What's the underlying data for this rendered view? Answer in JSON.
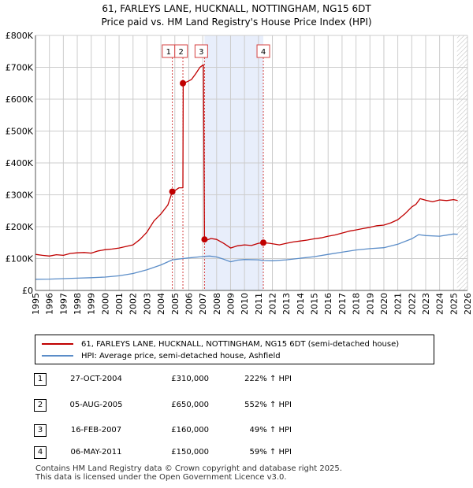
{
  "title_line1": "61, FARLEYS LANE, HUCKNALL, NOTTINGHAM, NG15 6DT",
  "title_line2": "Price paid vs. HM Land Registry's House Price Index (HPI)",
  "colors": {
    "property": "#c00000",
    "hpi": "#5b8dc8",
    "highlight": "#e8eefb",
    "marker_line": "#d44040",
    "grid": "#cccccc"
  },
  "chart_data": {
    "type": "line",
    "ylim": [
      0,
      800000
    ],
    "xlim": [
      1995,
      2026
    ],
    "yticks": [
      0,
      100000,
      200000,
      300000,
      400000,
      500000,
      600000,
      700000,
      800000
    ],
    "ytick_labels": [
      "£0",
      "£100K",
      "£200K",
      "£300K",
      "£400K",
      "£500K",
      "£600K",
      "£700K",
      "£800K"
    ],
    "xticks": [
      1995,
      1996,
      1997,
      1998,
      1999,
      2000,
      2001,
      2002,
      2003,
      2004,
      2005,
      2006,
      2007,
      2008,
      2009,
      2010,
      2011,
      2012,
      2013,
      2014,
      2015,
      2016,
      2017,
      2018,
      2019,
      2020,
      2021,
      2022,
      2023,
      2024,
      2025,
      2026
    ],
    "highlight_range": [
      2007.13,
      2011.35
    ],
    "future_hatch_from": 2025.25,
    "series": [
      {
        "name": "61, FARLEYS LANE, HUCKNALL, NOTTINGHAM, NG15 6DT (semi-detached house)",
        "x": [
          1995.0,
          1995.5,
          1996.0,
          1996.5,
          1997.0,
          1997.5,
          1998.0,
          1998.5,
          1999.0,
          1999.5,
          2000.0,
          2000.5,
          2001.0,
          2001.5,
          2002.0,
          2002.5,
          2003.0,
          2003.5,
          2004.0,
          2004.5,
          2004.82,
          2005.0,
          2005.3,
          2005.58,
          2005.6,
          2005.9,
          2006.2,
          2006.5,
          2006.8,
          2007.05,
          2007.13,
          2007.3,
          2007.6,
          2008.0,
          2008.5,
          2009.0,
          2009.5,
          2010.0,
          2010.5,
          2011.0,
          2011.35,
          2011.8,
          2012.5,
          2013.0,
          2013.5,
          2014.0,
          2014.5,
          2015.0,
          2015.5,
          2016.0,
          2016.5,
          2017.0,
          2017.5,
          2018.0,
          2018.5,
          2019.0,
          2019.5,
          2020.0,
          2020.5,
          2021.0,
          2021.5,
          2022.0,
          2022.3,
          2022.6,
          2023.0,
          2023.5,
          2024.0,
          2024.5,
          2025.0,
          2025.3
        ],
        "values": [
          113000,
          110000,
          108000,
          112000,
          110000,
          116000,
          118000,
          119000,
          117000,
          124000,
          128000,
          130000,
          133000,
          138000,
          143000,
          160000,
          183000,
          218000,
          240000,
          268000,
          310000,
          313000,
          322000,
          322000,
          650000,
          655000,
          662000,
          680000,
          700000,
          708000,
          160000,
          158000,
          163000,
          160000,
          148000,
          133000,
          140000,
          143000,
          141000,
          148000,
          150000,
          148000,
          143000,
          148000,
          152000,
          155000,
          158000,
          162000,
          165000,
          170000,
          174000,
          180000,
          186000,
          190000,
          194000,
          198000,
          203000,
          205000,
          212000,
          222000,
          240000,
          262000,
          270000,
          288000,
          283000,
          278000,
          284000,
          282000,
          285000,
          282000
        ]
      },
      {
        "name": "HPI: Average price, semi-detached house, Ashfield",
        "x": [
          1995.0,
          1996.0,
          1997.0,
          1998.0,
          1999.0,
          2000.0,
          2001.0,
          2002.0,
          2003.0,
          2004.0,
          2004.82,
          2005.58,
          2006.0,
          2007.13,
          2007.5,
          2008.0,
          2008.5,
          2009.0,
          2009.5,
          2010.0,
          2011.0,
          2011.35,
          2012.0,
          2013.0,
          2014.0,
          2015.0,
          2016.0,
          2017.0,
          2018.0,
          2019.0,
          2020.0,
          2021.0,
          2022.0,
          2022.5,
          2023.0,
          2024.0,
          2025.0,
          2025.3
        ],
        "values": [
          35000,
          35500,
          37000,
          38500,
          40000,
          42000,
          46000,
          53000,
          65000,
          80000,
          96000,
          100000,
          102000,
          107000,
          108000,
          105000,
          98000,
          90000,
          95000,
          97000,
          96000,
          94000,
          93000,
          96000,
          101000,
          106000,
          113000,
          120000,
          127000,
          131000,
          134000,
          145000,
          162000,
          175000,
          172000,
          170000,
          177000,
          176000
        ]
      }
    ],
    "sale_markers": [
      {
        "label": "1",
        "x": 2004.82,
        "value": 310000
      },
      {
        "label": "2",
        "x": 2005.58,
        "value": 650000
      },
      {
        "label": "3",
        "x": 2007.13,
        "value": 160000
      },
      {
        "label": "4",
        "x": 2011.35,
        "value": 150000
      }
    ]
  },
  "legend": {
    "property_label": "61, FARLEYS LANE, HUCKNALL, NOTTINGHAM, NG15 6DT (semi-detached house)",
    "hpi_label": "HPI: Average price, semi-detached house, Ashfield"
  },
  "transactions": [
    {
      "num": "1",
      "date": "27-OCT-2004",
      "price": "£310,000",
      "hpi": "222% ↑ HPI"
    },
    {
      "num": "2",
      "date": "05-AUG-2005",
      "price": "£650,000",
      "hpi": "552% ↑ HPI"
    },
    {
      "num": "3",
      "date": "16-FEB-2007",
      "price": "£160,000",
      "hpi": "49% ↑ HPI"
    },
    {
      "num": "4",
      "date": "06-MAY-2011",
      "price": "£150,000",
      "hpi": "59% ↑ HPI"
    }
  ],
  "footer_line1": "Contains HM Land Registry data © Crown copyright and database right 2025.",
  "footer_line2": "This data is licensed under the Open Government Licence v3.0."
}
